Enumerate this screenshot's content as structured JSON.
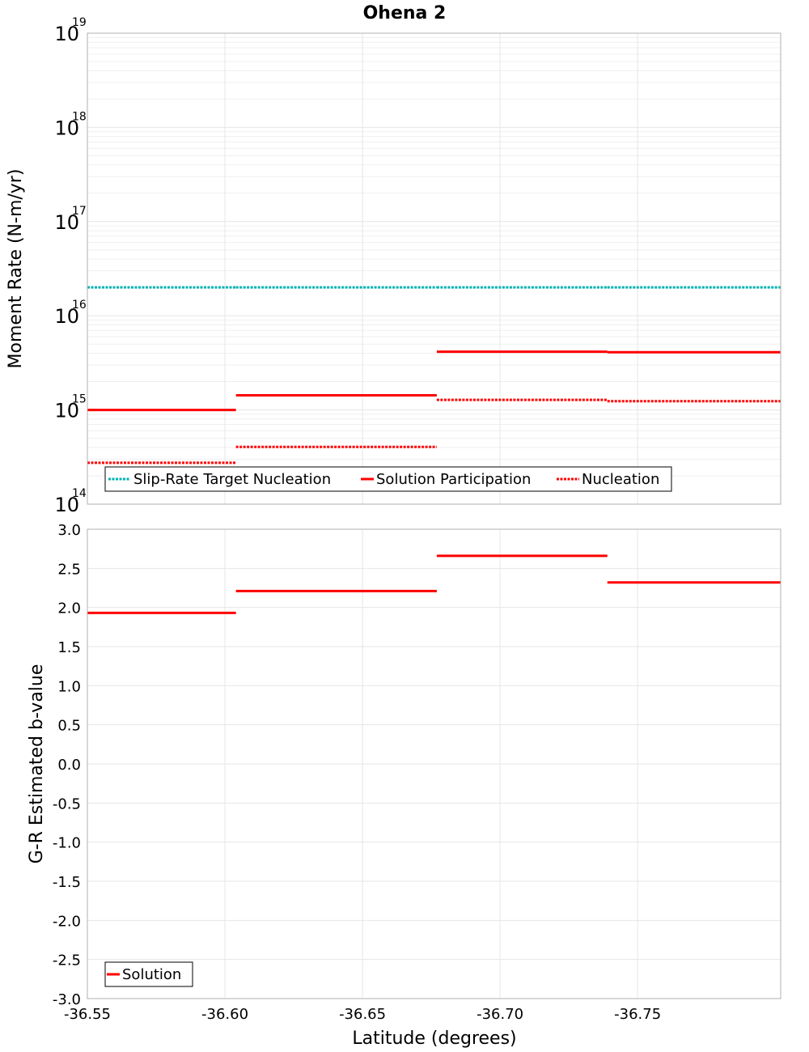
{
  "figure_title": "Ohena 2",
  "colors": {
    "solution": "#ff0000",
    "target": "#00b3b3",
    "grid": "#e6e6e6"
  },
  "chart_data": [
    {
      "type": "line",
      "panel": "top",
      "title": "Ohena 2",
      "xlabel": "",
      "ylabel": "Moment Rate (N-m/yr)",
      "yscale": "log",
      "xlim": [
        -36.55,
        -36.802
      ],
      "ylim": [
        100000000000000.0,
        1e+19
      ],
      "y_tick_labels": [
        {
          "base": "10",
          "exp": "14",
          "value": 100000000000000.0
        },
        {
          "base": "10",
          "exp": "15",
          "value": 1000000000000000.0
        },
        {
          "base": "10",
          "exp": "16",
          "value": 1e+16
        },
        {
          "base": "10",
          "exp": "17",
          "value": 1e+17
        },
        {
          "base": "10",
          "exp": "18",
          "value": 1e+18
        },
        {
          "base": "10",
          "exp": "19",
          "value": 1e+19
        }
      ],
      "series": [
        {
          "name": "Slip-Rate Target Nucleation",
          "style": "dotted",
          "color": "#00b3b3",
          "segments": [
            {
              "x0": -36.55,
              "x1": -36.604,
              "y": 2e+16
            },
            {
              "x0": -36.604,
              "x1": -36.677,
              "y": 2e+16
            },
            {
              "x0": -36.677,
              "x1": -36.739,
              "y": 2e+16
            },
            {
              "x0": -36.739,
              "x1": -36.802,
              "y": 2e+16
            }
          ]
        },
        {
          "name": "Solution Participation",
          "style": "solid",
          "color": "#ff0000",
          "segments": [
            {
              "x0": -36.55,
              "x1": -36.604,
              "y": 1000000000000000.0
            },
            {
              "x0": -36.604,
              "x1": -36.677,
              "y": 1430000000000000.0
            },
            {
              "x0": -36.677,
              "x1": -36.739,
              "y": 4150000000000000.0
            },
            {
              "x0": -36.739,
              "x1": -36.802,
              "y": 4100000000000000.0
            }
          ]
        },
        {
          "name": "Nucleation",
          "style": "dotted",
          "color": "#ff0000",
          "segments": [
            {
              "x0": -36.55,
              "x1": -36.604,
              "y": 275000000000000.0
            },
            {
              "x0": -36.604,
              "x1": -36.677,
              "y": 405000000000000.0
            },
            {
              "x0": -36.677,
              "x1": -36.739,
              "y": 1280000000000000.0
            },
            {
              "x0": -36.739,
              "x1": -36.802,
              "y": 1240000000000000.0
            }
          ]
        }
      ],
      "legend": {
        "position": "bottom-left",
        "entries": [
          "Slip-Rate Target Nucleation",
          "Solution Participation",
          "Nucleation"
        ]
      }
    },
    {
      "type": "line",
      "panel": "bottom",
      "title": "",
      "xlabel": "Latitude (degrees)",
      "ylabel": "G-R Estimated b-value",
      "xlim": [
        -36.55,
        -36.802
      ],
      "ylim": [
        -3.0,
        3.0
      ],
      "x_ticks": [
        -36.55,
        -36.6,
        -36.65,
        -36.7,
        -36.75
      ],
      "x_tick_labels": [
        "-36.55",
        "-36.60",
        "-36.65",
        "-36.70",
        "-36.75"
      ],
      "y_ticks": [
        3.0,
        2.5,
        2.0,
        1.5,
        1.0,
        0.5,
        0.0,
        -0.5,
        -1.0,
        -1.5,
        -2.0,
        -2.5,
        -3.0
      ],
      "y_tick_labels": [
        "3.0",
        "2.5",
        "2.0",
        "1.5",
        "1.0",
        "0.5",
        "0.0",
        "-0.5",
        "-1.0",
        "-1.5",
        "-2.0",
        "-2.5",
        "-3.0"
      ],
      "series": [
        {
          "name": "Solution",
          "style": "solid",
          "color": "#ff0000",
          "segments": [
            {
              "x0": -36.55,
              "x1": -36.604,
              "y": 1.93
            },
            {
              "x0": -36.604,
              "x1": -36.677,
              "y": 2.21
            },
            {
              "x0": -36.677,
              "x1": -36.739,
              "y": 2.66
            },
            {
              "x0": -36.739,
              "x1": -36.802,
              "y": 2.32
            }
          ]
        }
      ],
      "legend": {
        "position": "bottom-left",
        "entries": [
          "Solution"
        ]
      }
    }
  ]
}
